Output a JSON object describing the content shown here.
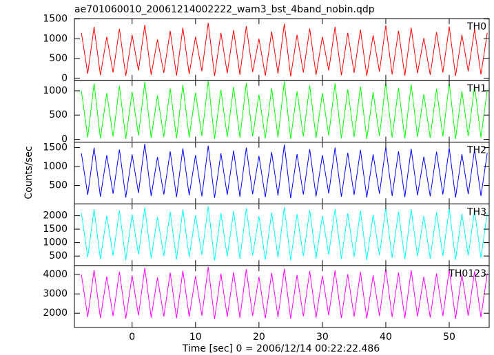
{
  "chart_data": [
    {
      "type": "line",
      "title": "ae701060010_20061214002222_wam3_bst_4band_nobin.qdp",
      "x": [
        -8,
        -7,
        -6,
        -5,
        -4,
        -3,
        -2,
        -1,
        0,
        1,
        2,
        3,
        4,
        5,
        6,
        7,
        8,
        9,
        10,
        11,
        12,
        13,
        14,
        15,
        16,
        17,
        18,
        19,
        20,
        21,
        22,
        23,
        24,
        25,
        26,
        27,
        28,
        29,
        30,
        31,
        32,
        33,
        34,
        35,
        36,
        37,
        38,
        39,
        40,
        41,
        42,
        43,
        44,
        45,
        46,
        47,
        48,
        49,
        50,
        51,
        52,
        53,
        54,
        55,
        56
      ],
      "series": [
        {
          "name": "TH0",
          "color": "#ff0000",
          "values": [
            1150,
            120,
            1300,
            80,
            1050,
            150,
            1250,
            60,
            1100,
            200,
            1350,
            90,
            980,
            140,
            1200,
            70,
            1280,
            110,
            1050,
            180,
            1400,
            60,
            1150,
            130,
            1220,
            90,
            1320,
            160,
            1000,
            70,
            1180,
            120,
            1380,
            50,
            1100,
            150,
            1260,
            90,
            1050,
            200,
            1300,
            80,
            1150,
            140,
            1230,
            60,
            1090,
            170,
            1340,
            100,
            1200,
            70,
            1280,
            130,
            1020,
            90,
            1170,
            150,
            1310,
            60,
            1100,
            180,
            1240,
            100,
            1150
          ]
        }
      ],
      "xlim": [
        -9.1,
        56.3
      ],
      "ylim": [
        -50,
        1510
      ],
      "yticks": [
        0,
        500,
        1000,
        1500
      ]
    },
    {
      "type": "line",
      "x": [
        -8,
        -7,
        -6,
        -5,
        -4,
        -3,
        -2,
        -1,
        0,
        1,
        2,
        3,
        4,
        5,
        6,
        7,
        8,
        9,
        10,
        11,
        12,
        13,
        14,
        15,
        16,
        17,
        18,
        19,
        20,
        21,
        22,
        23,
        24,
        25,
        26,
        27,
        28,
        29,
        30,
        31,
        32,
        33,
        34,
        35,
        36,
        37,
        38,
        39,
        40,
        41,
        42,
        43,
        44,
        45,
        46,
        47,
        48,
        49,
        50,
        51,
        52,
        53,
        54,
        55,
        56
      ],
      "series": [
        {
          "name": "TH1",
          "color": "#00ff00",
          "values": [
            1000,
            40,
            1150,
            20,
            950,
            60,
            1100,
            10,
            980,
            80,
            1180,
            30,
            900,
            50,
            1050,
            20,
            1120,
            40,
            960,
            70,
            1200,
            10,
            1020,
            50,
            1080,
            30,
            1160,
            60,
            920,
            20,
            1050,
            40,
            1190,
            10,
            990,
            60,
            1110,
            30,
            950,
            80,
            1150,
            20,
            1030,
            50,
            1090,
            10,
            970,
            70,
            1170,
            40,
            1060,
            20,
            1130,
            50,
            930,
            30,
            1040,
            60,
            1160,
            10,
            990,
            70,
            1100,
            40,
            1020
          ]
        }
      ],
      "xlim": [
        -9.1,
        56.3
      ],
      "ylim": [
        -57,
        1214
      ],
      "yticks": [
        0,
        500,
        1000
      ]
    },
    {
      "type": "line",
      "ylabel": "Counts/sec",
      "x": [
        -8,
        -7,
        -6,
        -5,
        -4,
        -3,
        -2,
        -1,
        0,
        1,
        2,
        3,
        4,
        5,
        6,
        7,
        8,
        9,
        10,
        11,
        12,
        13,
        14,
        15,
        16,
        17,
        18,
        19,
        20,
        21,
        22,
        23,
        24,
        25,
        26,
        27,
        28,
        29,
        30,
        31,
        32,
        33,
        34,
        35,
        36,
        37,
        38,
        39,
        40,
        41,
        42,
        43,
        44,
        45,
        46,
        47,
        48,
        49,
        50,
        51,
        52,
        53,
        54,
        55,
        56
      ],
      "series": [
        {
          "name": "TH2",
          "color": "#0000ff",
          "values": [
            1350,
            250,
            1500,
            200,
            1300,
            280,
            1450,
            180,
            1320,
            300,
            1600,
            220,
            1250,
            260,
            1400,
            190,
            1480,
            240,
            1300,
            210,
            1550,
            170,
            1350,
            250,
            1420,
            200,
            1500,
            270,
            1280,
            190,
            1380,
            230,
            1580,
            160,
            1330,
            260,
            1460,
            210,
            1300,
            290,
            1500,
            200,
            1360,
            250,
            1440,
            180,
            1320,
            280,
            1520,
            220,
            1400,
            190,
            1470,
            240,
            1260,
            210,
            1390,
            260,
            1490,
            180,
            1330,
            270,
            1450,
            220,
            1360
          ]
        }
      ],
      "xlim": [
        -9.1,
        56.3
      ],
      "ylim": [
        10,
        1645
      ],
      "yticks": [
        500,
        1000,
        1500
      ]
    },
    {
      "type": "line",
      "x": [
        -8,
        -7,
        -6,
        -5,
        -4,
        -3,
        -2,
        -1,
        0,
        1,
        2,
        3,
        4,
        5,
        6,
        7,
        8,
        9,
        10,
        11,
        12,
        13,
        14,
        15,
        16,
        17,
        18,
        19,
        20,
        21,
        22,
        23,
        24,
        25,
        26,
        27,
        28,
        29,
        30,
        31,
        32,
        33,
        34,
        35,
        36,
        37,
        38,
        39,
        40,
        41,
        42,
        43,
        44,
        45,
        46,
        47,
        48,
        49,
        50,
        51,
        52,
        53,
        54,
        55,
        56
      ],
      "series": [
        {
          "name": "TH3",
          "color": "#00ffff",
          "values": [
            2100,
            450,
            2250,
            380,
            2000,
            520,
            2200,
            350,
            2050,
            560,
            2300,
            420,
            1950,
            500,
            2150,
            370,
            2230,
            460,
            2020,
            540,
            2350,
            330,
            2100,
            480,
            2180,
            400,
            2280,
            520,
            1980,
            360,
            2120,
            440,
            2320,
            340,
            2060,
            500,
            2210,
            410,
            2000,
            550,
            2260,
            390,
            2090,
            470,
            2190,
            350,
            2040,
            530,
            2300,
            430,
            2150,
            380,
            2240,
            490,
            1990,
            410,
            2130,
            510,
            2270,
            360,
            2070,
            520,
            2200,
            440,
            2110
          ]
        }
      ],
      "xlim": [
        -9.1,
        56.3
      ],
      "ylim": [
        140,
        2440
      ],
      "yticks": [
        500,
        1000,
        1500,
        2000
      ]
    },
    {
      "type": "line",
      "xlabel": "Time [sec] 0 = 2006/12/14 00:22:22.486",
      "x": [
        -8,
        -7,
        -6,
        -5,
        -4,
        -3,
        -2,
        -1,
        0,
        1,
        2,
        3,
        4,
        5,
        6,
        7,
        8,
        9,
        10,
        11,
        12,
        13,
        14,
        15,
        16,
        17,
        18,
        19,
        20,
        21,
        22,
        23,
        24,
        25,
        26,
        27,
        28,
        29,
        30,
        31,
        32,
        33,
        34,
        35,
        36,
        37,
        38,
        39,
        40,
        41,
        42,
        43,
        44,
        45,
        46,
        47,
        48,
        49,
        50,
        51,
        52,
        53,
        54,
        55,
        56
      ],
      "series": [
        {
          "name": "TH0123",
          "color": "#ff00ff",
          "values": [
            4000,
            1800,
            4250,
            1750,
            3900,
            1850,
            4150,
            1720,
            3950,
            1880,
            4350,
            1780,
            3850,
            1830,
            4100,
            1740,
            4200,
            1820,
            3920,
            1870,
            4400,
            1700,
            4050,
            1810,
            4120,
            1760,
            4280,
            1860,
            3880,
            1730,
            4080,
            1790,
            4300,
            1710,
            3980,
            1840,
            4180,
            1770,
            3940,
            1890,
            4220,
            1750,
            4020,
            1820,
            4140,
            1720,
            3960,
            1860,
            4320,
            1800,
            4100,
            1740,
            4230,
            1830,
            3890,
            1780,
            4060,
            1850,
            4260,
            1710,
            4000,
            1870,
            4170,
            1790,
            4050
          ]
        }
      ],
      "xlim": [
        -9.1,
        56.3
      ],
      "ylim": [
        1260,
        4460
      ],
      "yticks": [
        2000,
        3000,
        4000
      ],
      "xticks": [
        0,
        10,
        20,
        30,
        40,
        50
      ]
    }
  ]
}
